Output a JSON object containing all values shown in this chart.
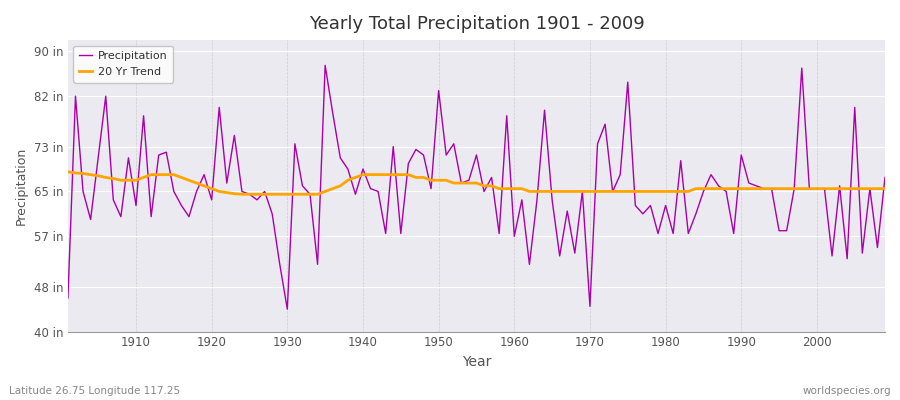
{
  "title": "Yearly Total Precipitation 1901 - 2009",
  "xlabel": "Year",
  "ylabel": "Precipitation",
  "footnote_left": "Latitude 26.75 Longitude 117.25",
  "footnote_right": "worldspecies.org",
  "ylim": [
    40,
    92
  ],
  "yticks": [
    40,
    48,
    57,
    65,
    73,
    82,
    90
  ],
  "ytick_labels": [
    "40 in",
    "48 in",
    "57 in",
    "65 in",
    "73 in",
    "82 in",
    "90 in"
  ],
  "xlim": [
    1901,
    2009
  ],
  "xticks": [
    1910,
    1920,
    1930,
    1940,
    1950,
    1960,
    1970,
    1980,
    1990,
    2000
  ],
  "precip_color": "#AA00AA",
  "trend_color": "#FFA500",
  "legend_precip": "Precipitation",
  "legend_trend": "20 Yr Trend",
  "bg_color": "#EAEAF0",
  "plot_bg_color": "#EAEAF0",
  "outer_bg": "#FFFFFF",
  "years": [
    1901,
    1902,
    1903,
    1904,
    1905,
    1906,
    1907,
    1908,
    1909,
    1910,
    1911,
    1912,
    1913,
    1914,
    1915,
    1916,
    1917,
    1918,
    1919,
    1920,
    1921,
    1922,
    1923,
    1924,
    1925,
    1926,
    1927,
    1928,
    1929,
    1930,
    1931,
    1932,
    1933,
    1934,
    1935,
    1936,
    1937,
    1938,
    1939,
    1940,
    1941,
    1942,
    1943,
    1944,
    1945,
    1946,
    1947,
    1948,
    1949,
    1950,
    1951,
    1952,
    1953,
    1954,
    1955,
    1956,
    1957,
    1958,
    1959,
    1960,
    1961,
    1962,
    1963,
    1964,
    1965,
    1966,
    1967,
    1968,
    1969,
    1970,
    1971,
    1972,
    1973,
    1974,
    1975,
    1976,
    1977,
    1978,
    1979,
    1980,
    1981,
    1982,
    1983,
    1984,
    1985,
    1986,
    1987,
    1988,
    1989,
    1990,
    1991,
    1992,
    1993,
    1994,
    1995,
    1996,
    1997,
    1998,
    1999,
    2000,
    2001,
    2002,
    2003,
    2004,
    2005,
    2006,
    2007,
    2008,
    2009
  ],
  "precip": [
    46.0,
    82.0,
    65.0,
    60.0,
    71.0,
    82.0,
    63.5,
    60.5,
    71.0,
    62.5,
    78.5,
    60.5,
    71.5,
    72.0,
    65.0,
    62.5,
    60.5,
    65.0,
    68.0,
    63.5,
    80.0,
    66.5,
    75.0,
    65.0,
    64.5,
    63.5,
    65.0,
    61.0,
    52.0,
    44.0,
    73.5,
    66.0,
    64.5,
    52.0,
    87.5,
    79.0,
    71.0,
    69.0,
    64.5,
    69.0,
    65.5,
    65.0,
    57.5,
    73.0,
    57.5,
    70.0,
    72.5,
    71.5,
    65.5,
    83.0,
    71.5,
    73.5,
    66.5,
    67.0,
    71.5,
    65.0,
    67.5,
    57.5,
    78.5,
    57.0,
    63.5,
    52.0,
    63.5,
    79.5,
    63.5,
    53.5,
    61.5,
    54.0,
    65.0,
    44.5,
    73.5,
    77.0,
    65.0,
    68.0,
    84.5,
    62.5,
    61.0,
    62.5,
    57.5,
    62.5,
    57.5,
    70.5,
    57.5,
    61.0,
    65.0,
    68.0,
    66.0,
    65.0,
    57.5,
    71.5,
    66.5,
    66.0,
    65.5,
    65.5,
    58.0,
    58.0,
    65.5,
    87.0,
    65.5,
    65.5,
    65.5,
    53.5,
    66.0,
    53.0,
    80.0,
    54.0,
    65.5,
    55.0,
    67.5
  ],
  "trend": [
    68.5,
    68.3,
    68.2,
    68.0,
    67.8,
    67.5,
    67.3,
    67.0,
    67.0,
    67.0,
    67.5,
    68.0,
    68.0,
    68.0,
    68.0,
    67.5,
    67.0,
    66.5,
    66.0,
    65.5,
    65.0,
    64.8,
    64.6,
    64.5,
    64.5,
    64.5,
    64.5,
    64.5,
    64.5,
    64.5,
    64.5,
    64.5,
    64.5,
    64.5,
    65.0,
    65.5,
    66.0,
    67.0,
    67.5,
    68.0,
    68.0,
    68.0,
    68.0,
    68.0,
    68.0,
    68.0,
    67.5,
    67.5,
    67.0,
    67.0,
    67.0,
    66.5,
    66.5,
    66.5,
    66.5,
    66.0,
    66.0,
    65.5,
    65.5,
    65.5,
    65.5,
    65.0,
    65.0,
    65.0,
    65.0,
    65.0,
    65.0,
    65.0,
    65.0,
    65.0,
    65.0,
    65.0,
    65.0,
    65.0,
    65.0,
    65.0,
    65.0,
    65.0,
    65.0,
    65.0,
    65.0,
    65.0,
    65.0,
    65.5,
    65.5,
    65.5,
    65.5,
    65.5,
    65.5,
    65.5,
    65.5,
    65.5,
    65.5,
    65.5,
    65.5,
    65.5,
    65.5,
    65.5,
    65.5,
    65.5,
    65.5,
    65.5,
    65.5,
    65.5,
    65.5,
    65.5,
    65.5,
    65.5,
    65.5
  ]
}
